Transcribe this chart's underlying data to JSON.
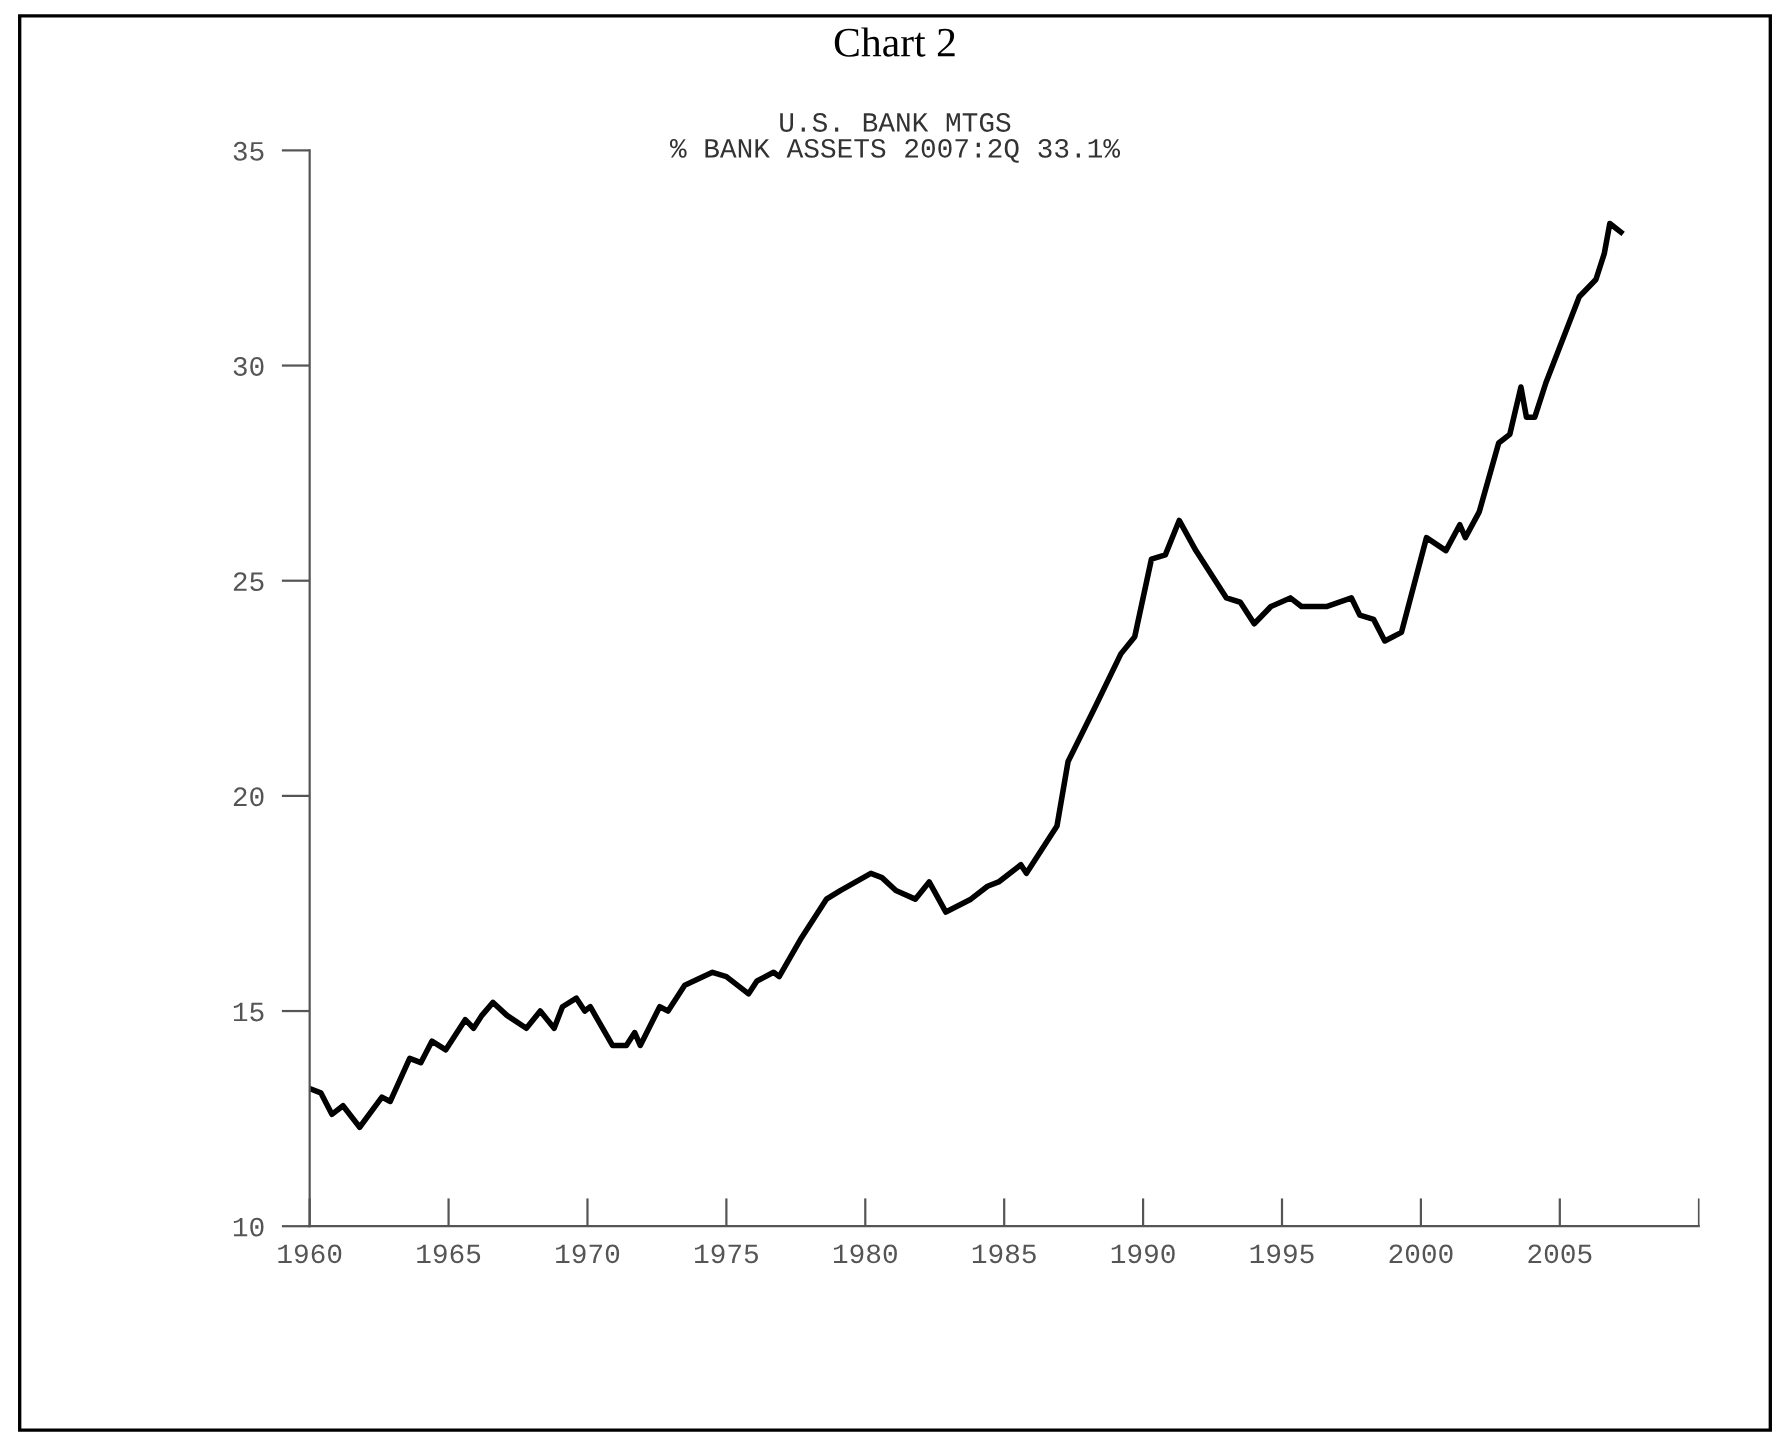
{
  "chart_data": {
    "type": "line",
    "title": "Chart 2",
    "subtitle": "U.S. BANK MTGS\n% BANK ASSETS 2007:2Q 33.1%",
    "x": [
      1960.0,
      1960.4,
      1960.8,
      1961.2,
      1961.8,
      1962.6,
      1962.9,
      1963.6,
      1964.0,
      1964.4,
      1964.9,
      1965.6,
      1965.9,
      1966.2,
      1966.6,
      1967.1,
      1967.8,
      1968.3,
      1968.8,
      1969.1,
      1969.6,
      1969.9,
      1970.1,
      1970.9,
      1971.4,
      1971.7,
      1971.9,
      1972.6,
      1972.9,
      1973.5,
      1974.5,
      1975.0,
      1975.8,
      1976.1,
      1976.7,
      1976.9,
      1977.7,
      1978.6,
      1979.1,
      1980.2,
      1980.6,
      1981.1,
      1981.8,
      1982.3,
      1982.9,
      1983.8,
      1984.4,
      1984.8,
      1985.6,
      1985.8,
      1986.9,
      1987.3,
      1988.3,
      1989.2,
      1989.7,
      1990.3,
      1990.8,
      1991.3,
      1991.9,
      1993.0,
      1993.5,
      1994.0,
      1994.6,
      1995.3,
      1995.7,
      1996.6,
      1997.5,
      1997.8,
      1998.3,
      1998.7,
      1999.3,
      2000.2,
      2000.9,
      2001.4,
      2001.6,
      2002.1,
      2002.8,
      2003.2,
      2003.6,
      2003.8,
      2004.1,
      2004.5,
      2005.7,
      2006.3,
      2006.6,
      2006.8,
      2007.2
    ],
    "series": [
      {
        "color": "#000000",
        "values": [
          13.2,
          13.1,
          12.6,
          12.8,
          12.3,
          13.0,
          12.9,
          13.9,
          13.8,
          14.3,
          14.1,
          14.8,
          14.6,
          14.9,
          15.2,
          14.9,
          14.6,
          15.0,
          14.6,
          15.1,
          15.3,
          15.0,
          15.1,
          14.2,
          14.2,
          14.5,
          14.2,
          15.1,
          15.0,
          15.6,
          15.9,
          15.8,
          15.4,
          15.7,
          15.9,
          15.8,
          16.7,
          17.6,
          17.8,
          18.2,
          18.1,
          17.8,
          17.6,
          18.0,
          17.3,
          17.6,
          17.9,
          18.0,
          18.4,
          18.2,
          19.3,
          20.8,
          22.1,
          23.3,
          23.7,
          25.5,
          25.6,
          26.4,
          25.7,
          24.6,
          24.5,
          24.0,
          24.4,
          24.6,
          24.4,
          24.4,
          24.6,
          24.2,
          24.1,
          23.6,
          23.8,
          26.0,
          25.7,
          26.3,
          26.0,
          26.6,
          28.2,
          28.4,
          29.5,
          28.8,
          28.8,
          29.6,
          31.6,
          32.0,
          32.6,
          33.3,
          33.1
        ]
      }
    ],
    "xlim": [
      1960,
      2010
    ],
    "xticks": [
      1960,
      1965,
      1970,
      1975,
      1980,
      1985,
      1990,
      1995,
      2000,
      2005,
      {
        "value": 2010,
        "label": null
      }
    ],
    "ylim": [
      10,
      35
    ],
    "yticks": [
      10,
      15,
      20,
      25,
      30,
      35
    ],
    "grid": false,
    "marker": "none",
    "line_style": "solid"
  }
}
